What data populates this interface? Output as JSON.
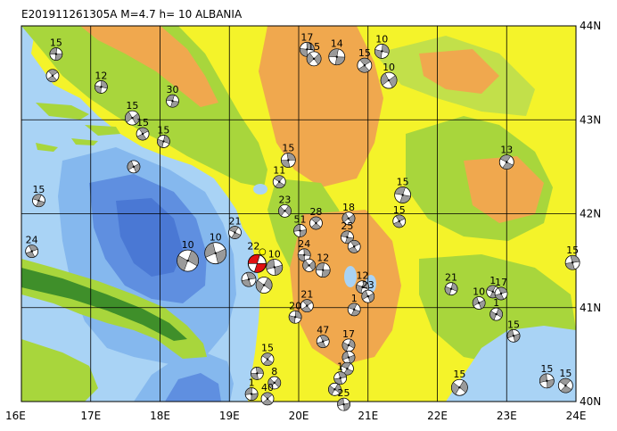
{
  "title": "E201911261305A  M=4.7  h= 10  ALBANIA",
  "colors": {
    "sea_shallow": "#a9d3f5",
    "sea_mid": "#85b8ee",
    "sea_deep": "#5f8fe0",
    "sea_deeper": "#4a78d4",
    "land_low": "#f4f32a",
    "land_green": "#a8d63c",
    "land_green2": "#c2e04a",
    "land_orange": "#f0a84e",
    "land_dark": "#3f8f2a",
    "grid": "#000000",
    "focal_dark": "#9a9a9a",
    "focal_light": "#ffffff",
    "main_event": "#e01010",
    "main_event_pin": "#ffff00"
  },
  "axes": {
    "lon_ticks": [
      "16E",
      "17E",
      "18E",
      "19E",
      "20E",
      "21E",
      "22E",
      "23E",
      "24E"
    ],
    "lat_ticks": [
      "40N",
      "41N",
      "42N",
      "43N",
      "44N"
    ],
    "lon_range": [
      16,
      24
    ],
    "lat_range": [
      40,
      44
    ]
  },
  "main_event": {
    "lon": 19.4,
    "lat": 41.47,
    "depth": "22"
  },
  "focal_mechanisms": [
    {
      "lon": 16.5,
      "lat": 43.7,
      "depth": "15",
      "size": 7
    },
    {
      "lon": 16.45,
      "lat": 43.47,
      "depth": "",
      "size": 7
    },
    {
      "lon": 17.15,
      "lat": 43.35,
      "depth": "12",
      "size": 7
    },
    {
      "lon": 17.6,
      "lat": 43.02,
      "depth": "15",
      "size": 8
    },
    {
      "lon": 18.18,
      "lat": 43.2,
      "depth": "30",
      "size": 7
    },
    {
      "lon": 17.75,
      "lat": 42.85,
      "depth": "15",
      "size": 7
    },
    {
      "lon": 18.05,
      "lat": 42.77,
      "depth": "15",
      "size": 7
    },
    {
      "lon": 17.62,
      "lat": 42.5,
      "depth": "",
      "size": 7
    },
    {
      "lon": 16.25,
      "lat": 42.14,
      "depth": "15",
      "size": 7
    },
    {
      "lon": 16.15,
      "lat": 41.6,
      "depth": "24",
      "size": 7
    },
    {
      "lon": 18.4,
      "lat": 41.5,
      "depth": "10",
      "size": 12
    },
    {
      "lon": 18.8,
      "lat": 41.58,
      "depth": "10",
      "size": 12
    },
    {
      "lon": 19.08,
      "lat": 41.8,
      "depth": "21",
      "size": 7
    },
    {
      "lon": 19.28,
      "lat": 41.3,
      "depth": "",
      "size": 8
    },
    {
      "lon": 19.5,
      "lat": 41.24,
      "depth": "",
      "size": 9
    },
    {
      "lon": 19.65,
      "lat": 41.43,
      "depth": "10",
      "size": 9
    },
    {
      "lon": 19.72,
      "lat": 42.34,
      "depth": "11",
      "size": 7
    },
    {
      "lon": 19.85,
      "lat": 42.57,
      "depth": "15",
      "size": 8
    },
    {
      "lon": 19.8,
      "lat": 42.03,
      "depth": "23",
      "size": 7
    },
    {
      "lon": 20.02,
      "lat": 41.82,
      "depth": "51",
      "size": 7
    },
    {
      "lon": 20.25,
      "lat": 41.9,
      "depth": "28",
      "size": 7
    },
    {
      "lon": 20.08,
      "lat": 41.56,
      "depth": "24",
      "size": 7
    },
    {
      "lon": 20.15,
      "lat": 41.45,
      "depth": "",
      "size": 7
    },
    {
      "lon": 20.35,
      "lat": 41.4,
      "depth": "12",
      "size": 8
    },
    {
      "lon": 20.12,
      "lat": 41.02,
      "depth": "21",
      "size": 7
    },
    {
      "lon": 19.95,
      "lat": 40.9,
      "depth": "20",
      "size": 7
    },
    {
      "lon": 20.72,
      "lat": 41.95,
      "depth": "18",
      "size": 7
    },
    {
      "lon": 20.7,
      "lat": 41.75,
      "depth": "25",
      "size": 7
    },
    {
      "lon": 20.8,
      "lat": 41.65,
      "depth": "",
      "size": 7
    },
    {
      "lon": 20.92,
      "lat": 41.22,
      "depth": "12",
      "size": 7
    },
    {
      "lon": 21.0,
      "lat": 41.12,
      "depth": "23",
      "size": 7
    },
    {
      "lon": 20.8,
      "lat": 40.98,
      "depth": "1",
      "size": 7
    },
    {
      "lon": 20.35,
      "lat": 40.64,
      "depth": "47",
      "size": 7
    },
    {
      "lon": 20.72,
      "lat": 40.6,
      "depth": "17",
      "size": 7
    },
    {
      "lon": 20.72,
      "lat": 40.47,
      "depth": "",
      "size": 7
    },
    {
      "lon": 20.7,
      "lat": 40.35,
      "depth": "",
      "size": 7
    },
    {
      "lon": 20.6,
      "lat": 40.25,
      "depth": "1",
      "size": 7
    },
    {
      "lon": 20.52,
      "lat": 40.13,
      "depth": "",
      "size": 7
    },
    {
      "lon": 20.65,
      "lat": 39.97,
      "depth": "25",
      "size": 7
    },
    {
      "lon": 19.55,
      "lat": 40.45,
      "depth": "15",
      "size": 7
    },
    {
      "lon": 19.4,
      "lat": 40.3,
      "depth": "",
      "size": 7
    },
    {
      "lon": 19.65,
      "lat": 40.2,
      "depth": "8",
      "size": 7
    },
    {
      "lon": 19.32,
      "lat": 40.08,
      "depth": "1",
      "size": 7
    },
    {
      "lon": 19.55,
      "lat": 40.03,
      "depth": "40",
      "size": 7
    },
    {
      "lon": 20.12,
      "lat": 43.75,
      "depth": "17",
      "size": 8
    },
    {
      "lon": 20.22,
      "lat": 43.65,
      "depth": "15",
      "size": 8
    },
    {
      "lon": 20.55,
      "lat": 43.67,
      "depth": "14",
      "size": 9
    },
    {
      "lon": 20.95,
      "lat": 43.58,
      "depth": "15",
      "size": 8
    },
    {
      "lon": 21.2,
      "lat": 43.73,
      "depth": "10",
      "size": 8
    },
    {
      "lon": 21.3,
      "lat": 43.42,
      "depth": "10",
      "size": 9
    },
    {
      "lon": 21.5,
      "lat": 42.2,
      "depth": "15",
      "size": 9
    },
    {
      "lon": 21.45,
      "lat": 41.92,
      "depth": "15",
      "size": 7
    },
    {
      "lon": 22.2,
      "lat": 41.2,
      "depth": "21",
      "size": 7
    },
    {
      "lon": 22.6,
      "lat": 41.05,
      "depth": "10",
      "size": 7
    },
    {
      "lon": 22.8,
      "lat": 41.17,
      "depth": "1",
      "size": 7
    },
    {
      "lon": 22.92,
      "lat": 41.15,
      "depth": "17",
      "size": 7
    },
    {
      "lon": 22.85,
      "lat": 40.93,
      "depth": "1",
      "size": 7
    },
    {
      "lon": 23.1,
      "lat": 40.7,
      "depth": "15",
      "size": 7
    },
    {
      "lon": 23.0,
      "lat": 42.55,
      "depth": "13",
      "size": 8
    },
    {
      "lon": 23.95,
      "lat": 41.48,
      "depth": "15",
      "size": 8
    },
    {
      "lon": 22.32,
      "lat": 40.15,
      "depth": "15",
      "size": 9
    },
    {
      "lon": 23.58,
      "lat": 40.22,
      "depth": "15",
      "size": 8
    },
    {
      "lon": 23.85,
      "lat": 40.17,
      "depth": "15",
      "size": 8
    }
  ]
}
